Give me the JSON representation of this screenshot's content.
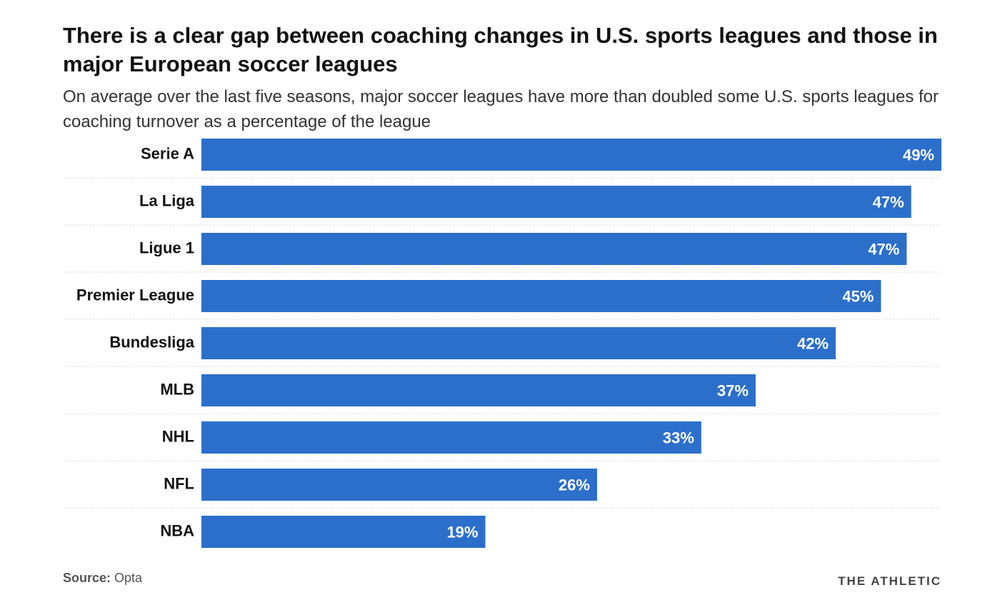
{
  "chart_data": {
    "type": "bar",
    "orientation": "horizontal",
    "title": "There is a clear gap between coaching changes in U.S. sports leagues and those in major European soccer leagues",
    "subtitle": "On average over the last five seasons, major soccer leagues have more than doubled some U.S. sports leagues for coaching turnover as a percentage of the league",
    "categories": [
      "Serie A",
      "La Liga",
      "Ligue 1",
      "Premier League",
      "Bundesliga",
      "MLB",
      "NHL",
      "NFL",
      "NBA"
    ],
    "values": [
      49,
      47,
      46.7,
      45,
      42,
      36.7,
      33.1,
      26.2,
      18.8
    ],
    "value_labels": [
      "49%",
      "47%",
      "47%",
      "45%",
      "42%",
      "37%",
      "33%",
      "26%",
      "19%"
    ],
    "color": "#2c6fcb",
    "xlim": [
      0,
      49
    ],
    "source_label": "Source:",
    "source": "Opta",
    "brand": "THE ATHLETIC"
  }
}
